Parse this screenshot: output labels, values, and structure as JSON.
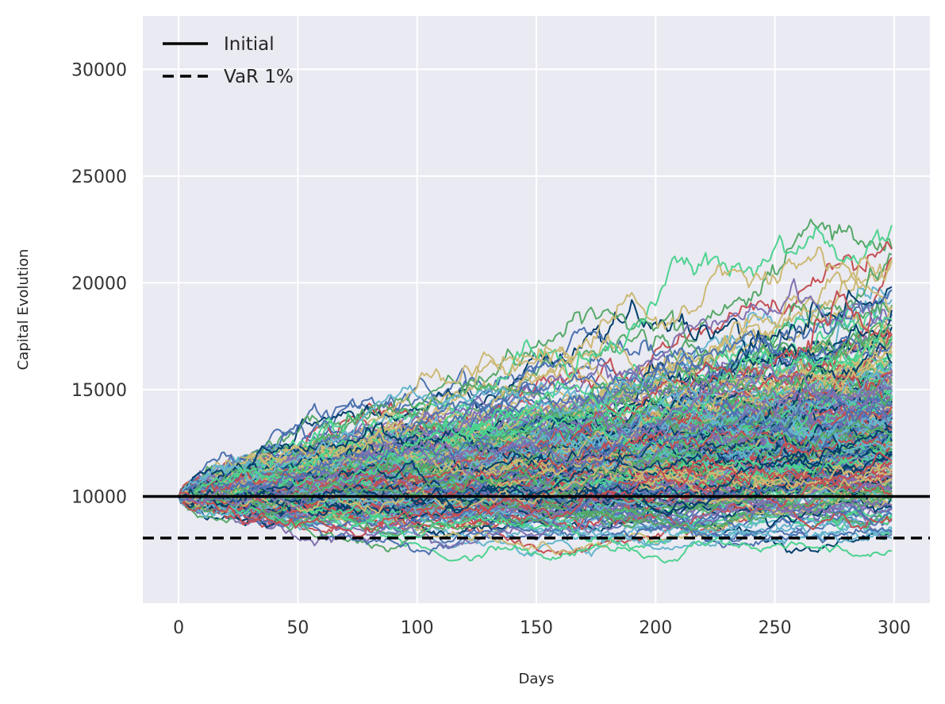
{
  "chart_data": {
    "type": "line",
    "title": "",
    "xlabel": "Days",
    "ylabel": "Capital Evolution",
    "xlim": [
      -15,
      315
    ],
    "ylim": [
      5000,
      32500
    ],
    "xticks": [
      0,
      50,
      100,
      150,
      200,
      250,
      300
    ],
    "yticks": [
      10000,
      15000,
      20000,
      25000,
      30000
    ],
    "grid": true,
    "legend_position": "top-left",
    "background": "#eaeaf2",
    "grid_color": "#ffffff",
    "simulation": {
      "num_paths": 300,
      "days": 300,
      "start_value": 10000,
      "end_range_shown": [
        6500,
        30500
      ],
      "path_colors": [
        "#4c72b0",
        "#55a868",
        "#c44e52",
        "#8172b2",
        "#ccb974",
        "#64b5cd",
        "#4cd38f",
        "#003e6b"
      ]
    },
    "reference_lines": [
      {
        "name": "Initial",
        "y": 10000,
        "style": "solid",
        "color": "#000000"
      },
      {
        "name": "VaR 1%",
        "y": 8050,
        "style": "dashed",
        "color": "#000000"
      }
    ]
  }
}
